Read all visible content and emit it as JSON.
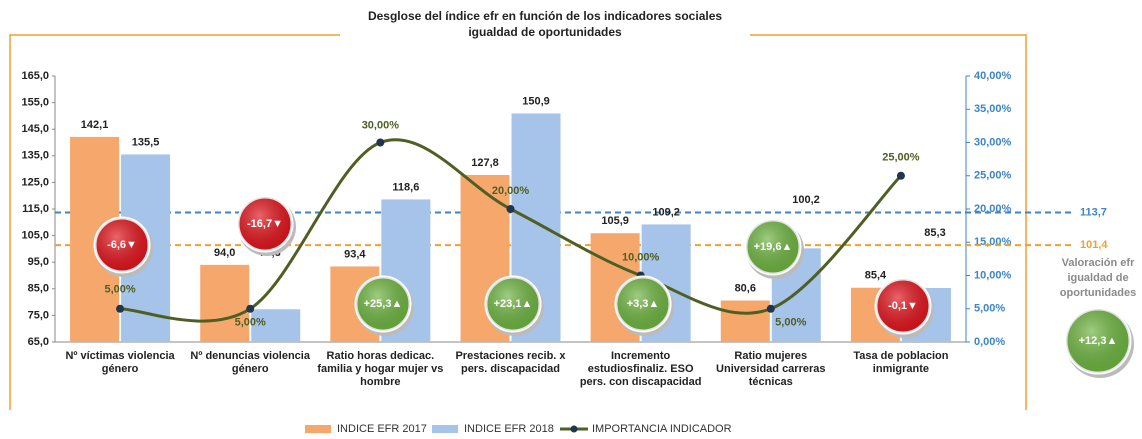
{
  "chart_data": {
    "type": "bar",
    "title": "Desglose del índice efr en función de los indicadores sociales",
    "subtitle": "igualdad de oportunidades",
    "categories": [
      "Nº víctimas  violencia género",
      "Nº denuncias violencia género",
      "Ratio horas dedicac. familia y hogar mujer vs hombre",
      "Prestaciones recib. x pers. discapacidad",
      "Incremento estudiosfinaliz. ESO pers. con discapacidad",
      "Ratio mujeres Universidad carreras técnicas",
      "Tasa de poblacion inmigrante"
    ],
    "series": [
      {
        "name": "INDICE EFR 2017",
        "color": "#f6a86c",
        "values": [
          142.1,
          94.0,
          93.4,
          127.8,
          105.9,
          80.6,
          85.4
        ],
        "value_labels": [
          "142,1",
          "94,0",
          "93,4",
          "127,8",
          "105,9",
          "80,6",
          "85,4"
        ]
      },
      {
        "name": "INDICE EFR 2018",
        "color": "#a6c3e9",
        "values": [
          135.5,
          77.3,
          118.6,
          150.9,
          109.2,
          100.2,
          85.3
        ],
        "value_labels": [
          "135,5",
          "77,3",
          "118,6",
          "150,9",
          "109,2",
          "100,2",
          "85,3"
        ]
      },
      {
        "name": "IMPORTANCIA INDICADOR",
        "type": "line",
        "axis": "y2",
        "color": "#4f5f24",
        "marker_color": "#1f3550",
        "values": [
          5,
          5,
          30,
          20,
          10,
          5,
          25
        ],
        "value_labels": [
          "5,00%",
          "5,00%",
          "30,00%",
          "20,00%",
          "10,00%",
          "5,00%",
          "25,00%"
        ]
      }
    ],
    "ylim": [
      65,
      165
    ],
    "yticks": [
      {
        "value": 65,
        "label": "65,0"
      },
      {
        "value": 75,
        "label": "75,0"
      },
      {
        "value": 85,
        "label": "85,0"
      },
      {
        "value": 95,
        "label": "95,0"
      },
      {
        "value": 105,
        "label": "105,0"
      },
      {
        "value": 115,
        "label": "115,0"
      },
      {
        "value": 125,
        "label": "125,0"
      },
      {
        "value": 135,
        "label": "135,0"
      },
      {
        "value": 145,
        "label": "145,0"
      },
      {
        "value": 155,
        "label": "155,0"
      },
      {
        "value": 165,
        "label": "165,0"
      }
    ],
    "y2lim": [
      0,
      40
    ],
    "y2ticks": [
      {
        "value": 0,
        "label": "0,00%"
      },
      {
        "value": 5,
        "label": "5,00%"
      },
      {
        "value": 10,
        "label": "10,00%"
      },
      {
        "value": 15,
        "label": "15,00%"
      },
      {
        "value": 20,
        "label": "20,00%"
      },
      {
        "value": 25,
        "label": "25,00%"
      },
      {
        "value": 30,
        "label": "30,00%"
      },
      {
        "value": 35,
        "label": "35,00%"
      },
      {
        "value": 40,
        "label": "40,00%"
      }
    ],
    "grid": false,
    "legend": "bottom",
    "reference_lines": [
      {
        "value": 113.7,
        "label": "113,7",
        "color": "#3d85c6"
      },
      {
        "value": 101.4,
        "label": "101,4",
        "color": "#f0a030"
      }
    ],
    "badges": [
      {
        "value": -6.6,
        "label": "-6,6▼",
        "color": "#e0121a"
      },
      {
        "value": -16.7,
        "label": "-16,7▼",
        "color": "#e0121a"
      },
      {
        "value": 25.3,
        "label": "+25,3▲",
        "color": "#6cb33e"
      },
      {
        "value": 23.1,
        "label": "+23,1▲",
        "color": "#6cb33e"
      },
      {
        "value": 3.3,
        "label": "+3,3▲",
        "color": "#6cb33e"
      },
      {
        "value": 19.6,
        "label": "+19,6▲",
        "color": "#6cb33e"
      },
      {
        "value": -0.1,
        "label": "-0,1▼",
        "color": "#e0121a"
      }
    ],
    "overall": {
      "text": "Valoración efr igualdad de oportunidades",
      "value": 12.3,
      "label": "+12,3▲",
      "color": "#6cb33e"
    }
  }
}
